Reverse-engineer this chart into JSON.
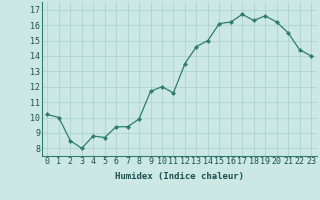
{
  "x": [
    0,
    1,
    2,
    3,
    4,
    5,
    6,
    7,
    8,
    9,
    10,
    11,
    12,
    13,
    14,
    15,
    16,
    17,
    18,
    19,
    20,
    21,
    22,
    23
  ],
  "y": [
    10.2,
    10.0,
    8.5,
    8.0,
    8.8,
    8.7,
    9.4,
    9.4,
    9.9,
    11.7,
    12.0,
    11.6,
    13.5,
    14.6,
    15.0,
    16.1,
    16.2,
    16.7,
    16.3,
    16.6,
    16.2,
    15.5,
    14.4,
    14.0
  ],
  "line_color": "#2e7d6e",
  "marker_color": "#2e7d6e",
  "bg_color": "#cce8e4",
  "grid_color": "#aacfcb",
  "xlabel": "Humidex (Indice chaleur)",
  "ylim": [
    7.5,
    17.5
  ],
  "xlim": [
    -0.5,
    23.5
  ],
  "yticks": [
    8,
    9,
    10,
    11,
    12,
    13,
    14,
    15,
    16,
    17
  ],
  "xticks": [
    0,
    1,
    2,
    3,
    4,
    5,
    6,
    7,
    8,
    9,
    10,
    11,
    12,
    13,
    14,
    15,
    16,
    17,
    18,
    19,
    20,
    21,
    22,
    23
  ],
  "xtick_labels": [
    "0",
    "1",
    "2",
    "3",
    "4",
    "5",
    "6",
    "7",
    "8",
    "9",
    "10",
    "11",
    "12",
    "13",
    "14",
    "15",
    "16",
    "17",
    "18",
    "19",
    "20",
    "21",
    "22",
    "23"
  ],
  "label_fontsize": 6.5,
  "tick_fontsize": 6
}
